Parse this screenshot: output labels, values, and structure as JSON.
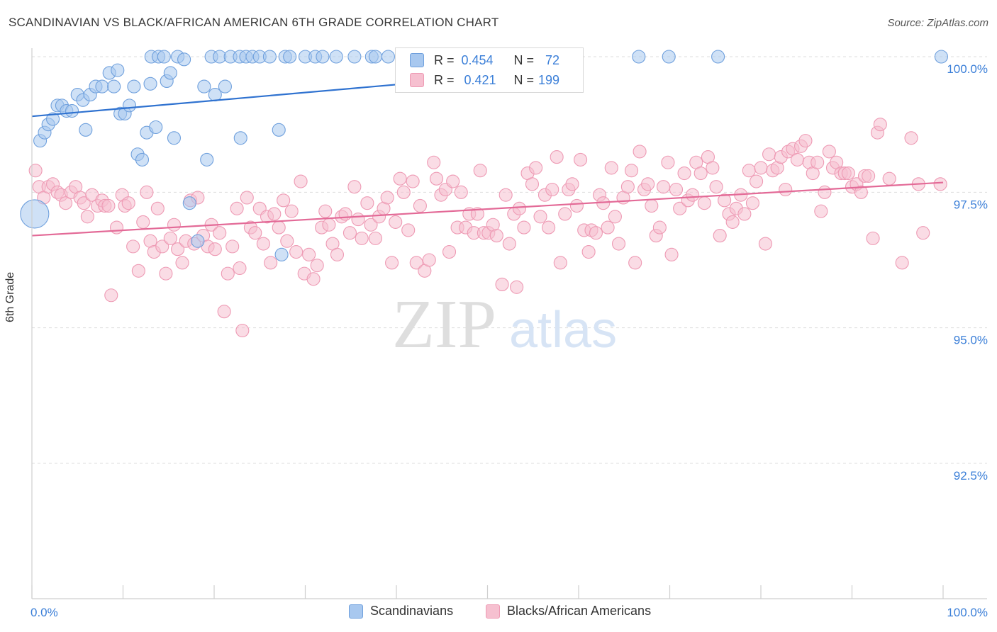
{
  "title": "SCANDINAVIAN VS BLACK/AFRICAN AMERICAN 6TH GRADE CORRELATION CHART",
  "source": "Source: ZipAtlas.com",
  "watermark": {
    "zip": "ZIP",
    "atlas": "atlas"
  },
  "colors": {
    "blue_fill": "#a8c8ef",
    "blue_stroke": "#6fa0dd",
    "blue_line": "#2f72d0",
    "pink_fill": "#f6c0d0",
    "pink_stroke": "#ee9ab4",
    "pink_line": "#e36a97",
    "tick_label": "#3b7fd8",
    "grid": "#dddddd"
  },
  "legend_box": {
    "rows": [
      {
        "series": "blue",
        "r_label": "R =",
        "r_value": "0.454",
        "n_label": "N =",
        "n_value": "72"
      },
      {
        "series": "pink",
        "r_label": "R =",
        "r_value": "0.421",
        "n_label": "N =",
        "n_value": "199"
      }
    ]
  },
  "legend_bottom": [
    {
      "series": "blue",
      "label": "Scandinavians"
    },
    {
      "series": "pink",
      "label": "Blacks/African Americans"
    }
  ],
  "chart_data": {
    "type": "scatter",
    "title": "SCANDINAVIAN VS BLACK/AFRICAN AMERICAN 6TH GRADE CORRELATION CHART",
    "xlabel": "",
    "ylabel": "6th Grade",
    "xlim": [
      0,
      100
    ],
    "ylim": [
      90.8,
      100.2
    ],
    "x_tick_labels": [
      "0.0%",
      "100.0%"
    ],
    "y_ticks": [
      92.5,
      95.0,
      97.5,
      100.0
    ],
    "y_tick_labels": [
      "92.5%",
      "95.0%",
      "97.5%",
      "100.0%"
    ],
    "grid": "horizontal dashed",
    "series": [
      {
        "name": "Scandinavians",
        "color": "blue",
        "trend": {
          "x0": 0,
          "y0": 98.9,
          "x1": 56,
          "y1": 99.72
        },
        "points": [
          [
            0.3,
            97.1,
            "L"
          ],
          [
            0.9,
            98.45
          ],
          [
            1.4,
            98.6
          ],
          [
            1.8,
            98.75
          ],
          [
            2.3,
            98.85
          ],
          [
            2.8,
            99.1
          ],
          [
            3.3,
            99.1
          ],
          [
            3.8,
            99.0
          ],
          [
            4.4,
            99.0
          ],
          [
            5.0,
            99.3
          ],
          [
            5.6,
            99.2
          ],
          [
            5.9,
            98.65
          ],
          [
            6.4,
            99.3
          ],
          [
            7.0,
            99.45
          ],
          [
            7.7,
            99.45
          ],
          [
            8.5,
            99.7
          ],
          [
            9.0,
            99.45
          ],
          [
            9.4,
            99.75
          ],
          [
            9.7,
            98.95
          ],
          [
            10.2,
            98.95
          ],
          [
            10.7,
            99.1
          ],
          [
            11.2,
            99.45
          ],
          [
            11.6,
            98.2
          ],
          [
            12.1,
            98.1
          ],
          [
            12.6,
            98.6
          ],
          [
            13.0,
            99.5
          ],
          [
            13.1,
            100.0
          ],
          [
            13.6,
            98.7
          ],
          [
            13.9,
            100.0
          ],
          [
            14.5,
            100.0
          ],
          [
            14.8,
            99.55
          ],
          [
            15.2,
            99.7
          ],
          [
            15.6,
            98.5
          ],
          [
            16.0,
            100.0
          ],
          [
            16.7,
            99.95
          ],
          [
            17.3,
            97.3
          ],
          [
            18.2,
            96.6
          ],
          [
            18.9,
            99.45
          ],
          [
            19.2,
            98.1
          ],
          [
            19.7,
            100.0
          ],
          [
            20.1,
            99.3
          ],
          [
            20.6,
            100.0
          ],
          [
            21.2,
            99.45
          ],
          [
            21.8,
            100.0
          ],
          [
            22.8,
            100.0
          ],
          [
            22.9,
            98.5
          ],
          [
            23.5,
            100.0
          ],
          [
            24.2,
            100.0
          ],
          [
            25.0,
            100.0
          ],
          [
            26.1,
            100.0
          ],
          [
            27.1,
            98.65
          ],
          [
            27.4,
            96.35
          ],
          [
            27.8,
            100.0
          ],
          [
            28.3,
            100.0
          ],
          [
            30.0,
            100.0
          ],
          [
            31.1,
            100.0
          ],
          [
            31.9,
            100.0
          ],
          [
            33.4,
            100.0
          ],
          [
            35.4,
            100.0
          ],
          [
            37.3,
            100.0
          ],
          [
            37.7,
            100.0
          ],
          [
            39.1,
            100.0
          ],
          [
            40.8,
            100.0
          ],
          [
            42.1,
            100.0
          ],
          [
            43.9,
            100.0
          ],
          [
            45.6,
            100.0
          ],
          [
            66.6,
            100.0
          ],
          [
            69.9,
            100.0
          ],
          [
            75.3,
            100.0
          ],
          [
            99.8,
            100.0
          ]
        ]
      },
      {
        "name": "Blacks/African Americans",
        "color": "pink",
        "trend": {
          "x0": 0,
          "y0": 96.7,
          "x1": 100,
          "y1": 97.68
        },
        "points": [
          [
            0.4,
            97.9
          ],
          [
            0.8,
            97.6
          ],
          [
            1.3,
            97.4
          ],
          [
            1.8,
            97.6
          ],
          [
            2.3,
            97.65
          ],
          [
            2.8,
            97.5
          ],
          [
            3.2,
            97.45
          ],
          [
            3.7,
            97.3
          ],
          [
            4.3,
            97.5
          ],
          [
            4.8,
            97.6
          ],
          [
            5.3,
            97.4
          ],
          [
            5.7,
            97.3
          ],
          [
            6.1,
            97.05
          ],
          [
            6.6,
            97.45
          ],
          [
            7.2,
            97.25
          ],
          [
            7.7,
            97.35
          ],
          [
            8.0,
            97.25
          ],
          [
            8.4,
            97.25
          ],
          [
            8.7,
            95.6
          ],
          [
            9.3,
            96.85
          ],
          [
            9.9,
            97.45
          ],
          [
            10.2,
            97.25
          ],
          [
            10.6,
            97.3
          ],
          [
            11.1,
            96.5
          ],
          [
            11.7,
            96.05
          ],
          [
            12.2,
            96.95
          ],
          [
            12.6,
            97.5
          ],
          [
            13.0,
            96.6
          ],
          [
            13.4,
            96.4
          ],
          [
            13.8,
            97.2
          ],
          [
            14.3,
            96.5
          ],
          [
            14.7,
            96.0
          ],
          [
            15.2,
            96.65
          ],
          [
            15.6,
            96.9
          ],
          [
            16.0,
            96.45
          ],
          [
            16.5,
            96.2
          ],
          [
            16.9,
            96.6
          ],
          [
            17.4,
            97.35
          ],
          [
            17.8,
            96.55
          ],
          [
            18.2,
            97.4
          ],
          [
            18.8,
            96.7
          ],
          [
            19.3,
            96.5
          ],
          [
            19.7,
            96.9
          ],
          [
            20.1,
            96.45
          ],
          [
            20.6,
            96.75
          ],
          [
            21.1,
            95.3
          ],
          [
            21.5,
            96.0
          ],
          [
            22.0,
            96.5
          ],
          [
            22.5,
            97.2
          ],
          [
            22.8,
            96.1
          ],
          [
            23.1,
            94.95
          ],
          [
            23.6,
            97.4
          ],
          [
            24.0,
            96.85
          ],
          [
            24.5,
            96.75
          ],
          [
            25.0,
            97.2
          ],
          [
            25.4,
            96.55
          ],
          [
            25.8,
            97.05
          ],
          [
            26.2,
            96.2
          ],
          [
            26.6,
            97.1
          ],
          [
            27.1,
            96.85
          ],
          [
            27.6,
            97.35
          ],
          [
            28.0,
            96.6
          ],
          [
            28.5,
            97.15
          ],
          [
            29.0,
            96.4
          ],
          [
            29.5,
            97.7
          ],
          [
            29.9,
            96.0
          ],
          [
            30.4,
            96.35
          ],
          [
            30.9,
            95.9
          ],
          [
            31.3,
            96.15
          ],
          [
            31.8,
            96.85
          ],
          [
            32.2,
            97.15
          ],
          [
            32.6,
            96.9
          ],
          [
            33.0,
            96.55
          ],
          [
            33.5,
            96.35
          ],
          [
            34.0,
            97.05
          ],
          [
            34.4,
            97.1
          ],
          [
            34.9,
            96.75
          ],
          [
            35.4,
            97.6
          ],
          [
            35.8,
            97.0
          ],
          [
            36.2,
            96.65
          ],
          [
            36.8,
            97.3
          ],
          [
            37.2,
            96.9
          ],
          [
            37.7,
            96.65
          ],
          [
            38.1,
            97.05
          ],
          [
            38.6,
            97.2
          ],
          [
            39.0,
            97.4
          ],
          [
            39.5,
            96.2
          ],
          [
            39.9,
            96.95
          ],
          [
            40.4,
            97.75
          ],
          [
            40.8,
            97.5
          ],
          [
            41.3,
            96.8
          ],
          [
            41.8,
            97.7
          ],
          [
            42.2,
            96.2
          ],
          [
            42.6,
            97.25
          ],
          [
            43.1,
            96.05
          ],
          [
            43.6,
            96.25
          ],
          [
            44.1,
            98.05
          ],
          [
            44.4,
            97.75
          ],
          [
            44.9,
            97.45
          ],
          [
            45.4,
            97.55
          ],
          [
            45.8,
            96.4
          ],
          [
            46.2,
            97.7
          ],
          [
            46.7,
            96.85
          ],
          [
            47.1,
            97.5
          ],
          [
            47.6,
            96.85
          ],
          [
            48.0,
            97.1
          ],
          [
            48.5,
            96.75
          ],
          [
            48.9,
            97.1
          ],
          [
            49.2,
            97.9
          ],
          [
            49.6,
            96.75
          ],
          [
            50.1,
            96.75
          ],
          [
            50.6,
            96.9
          ],
          [
            51.0,
            96.7
          ],
          [
            51.6,
            95.8
          ],
          [
            52.0,
            97.45
          ],
          [
            52.4,
            96.55
          ],
          [
            52.9,
            97.1
          ],
          [
            53.2,
            95.75
          ],
          [
            53.5,
            97.2
          ],
          [
            54.0,
            96.85
          ],
          [
            54.4,
            97.85
          ],
          [
            54.9,
            97.65
          ],
          [
            55.3,
            97.95
          ],
          [
            55.8,
            97.05
          ],
          [
            56.3,
            97.45
          ],
          [
            56.7,
            96.85
          ],
          [
            57.1,
            97.55
          ],
          [
            57.6,
            98.15
          ],
          [
            58.0,
            96.2
          ],
          [
            58.5,
            97.1
          ],
          [
            58.9,
            97.55
          ],
          [
            59.3,
            97.65
          ],
          [
            59.8,
            97.25
          ],
          [
            60.2,
            98.1
          ],
          [
            60.6,
            96.8
          ],
          [
            61.1,
            96.4
          ],
          [
            61.4,
            96.8
          ],
          [
            61.9,
            96.75
          ],
          [
            62.3,
            97.45
          ],
          [
            62.7,
            97.3
          ],
          [
            63.2,
            96.85
          ],
          [
            63.6,
            97.95
          ],
          [
            64.0,
            97.05
          ],
          [
            64.4,
            96.55
          ],
          [
            64.9,
            97.4
          ],
          [
            65.4,
            97.6
          ],
          [
            65.8,
            97.9
          ],
          [
            66.2,
            96.2
          ],
          [
            66.7,
            98.25
          ],
          [
            67.2,
            97.55
          ],
          [
            67.6,
            97.65
          ],
          [
            68.0,
            97.25
          ],
          [
            68.5,
            96.7
          ],
          [
            68.9,
            96.85
          ],
          [
            69.3,
            97.6
          ],
          [
            69.8,
            98.05
          ],
          [
            70.2,
            96.35
          ],
          [
            70.7,
            97.55
          ],
          [
            71.1,
            97.2
          ],
          [
            71.6,
            97.85
          ],
          [
            72.0,
            97.35
          ],
          [
            72.5,
            97.45
          ],
          [
            72.9,
            98.05
          ],
          [
            73.4,
            97.85
          ],
          [
            73.8,
            97.3
          ],
          [
            74.2,
            98.15
          ],
          [
            74.7,
            97.95
          ],
          [
            75.1,
            97.6
          ],
          [
            75.5,
            96.7
          ],
          [
            76.0,
            97.35
          ],
          [
            76.5,
            97.1
          ],
          [
            76.9,
            96.95
          ],
          [
            77.3,
            97.2
          ],
          [
            77.8,
            97.45
          ],
          [
            78.2,
            97.1
          ],
          [
            78.7,
            97.9
          ],
          [
            79.1,
            97.3
          ],
          [
            79.5,
            97.7
          ],
          [
            80.0,
            97.95
          ],
          [
            80.5,
            96.55
          ],
          [
            80.9,
            98.2
          ],
          [
            81.3,
            97.9
          ],
          [
            81.8,
            97.95
          ],
          [
            82.2,
            98.15
          ],
          [
            82.7,
            97.55
          ],
          [
            83.0,
            98.25
          ],
          [
            83.5,
            98.3
          ],
          [
            84.0,
            98.1
          ],
          [
            84.4,
            98.35
          ],
          [
            84.9,
            98.45
          ],
          [
            85.3,
            98.05
          ],
          [
            85.7,
            97.85
          ],
          [
            86.2,
            98.05
          ],
          [
            86.6,
            97.15
          ],
          [
            87.0,
            97.5
          ],
          [
            87.5,
            98.25
          ],
          [
            87.9,
            97.95
          ],
          [
            88.3,
            98.05
          ],
          [
            88.8,
            97.85
          ],
          [
            89.2,
            97.85
          ],
          [
            89.6,
            97.85
          ],
          [
            90.0,
            97.6
          ],
          [
            90.5,
            97.65
          ],
          [
            91.0,
            97.5
          ],
          [
            91.4,
            97.8
          ],
          [
            91.8,
            97.8
          ],
          [
            92.3,
            96.65
          ],
          [
            92.8,
            98.6
          ],
          [
            93.1,
            98.75
          ],
          [
            94.1,
            97.75
          ],
          [
            95.5,
            96.2
          ],
          [
            96.5,
            98.5
          ],
          [
            97.3,
            97.65
          ],
          [
            97.8,
            96.75
          ],
          [
            99.7,
            97.65
          ]
        ]
      }
    ]
  }
}
